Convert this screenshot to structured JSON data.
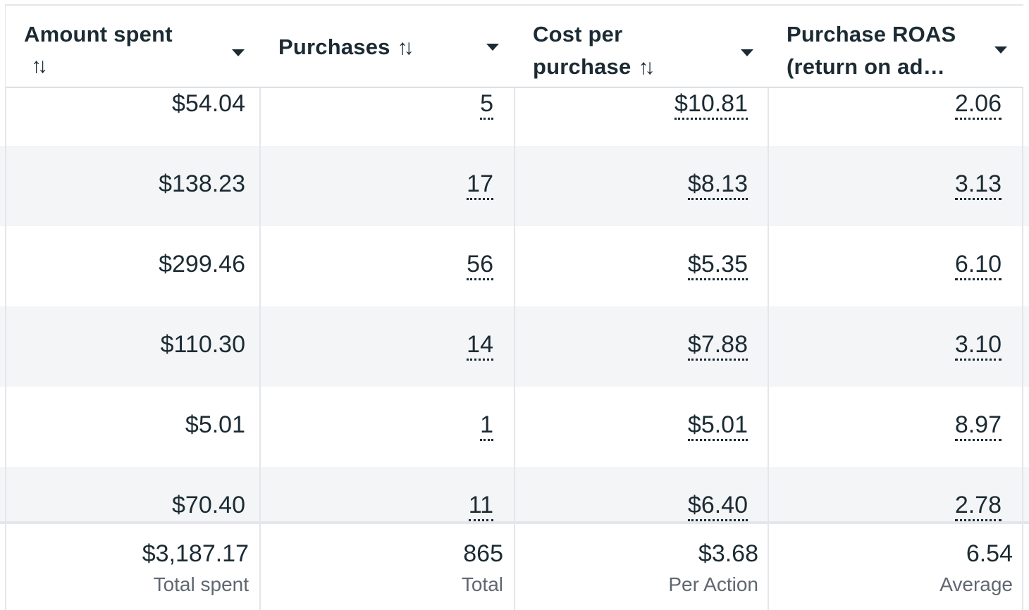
{
  "columns": [
    {
      "label": "Amount spent",
      "sort_icon": "sort-arrows-icon"
    },
    {
      "label": "Purchases",
      "sort_icon": "sort-arrows-icon"
    },
    {
      "label": "Cost per purchase",
      "sort_icon": "sort-arrows-icon"
    },
    {
      "label": "Purchase ROAS (return on ad…"
    }
  ],
  "rows": [
    {
      "amount_spent": "$54.04",
      "purchases": "5",
      "cost_per_purchase": "$10.81",
      "roas": "2.06"
    },
    {
      "amount_spent": "$138.23",
      "purchases": "17",
      "cost_per_purchase": "$8.13",
      "roas": "3.13"
    },
    {
      "amount_spent": "$299.46",
      "purchases": "56",
      "cost_per_purchase": "$5.35",
      "roas": "6.10"
    },
    {
      "amount_spent": "$110.30",
      "purchases": "14",
      "cost_per_purchase": "$7.88",
      "roas": "3.10"
    },
    {
      "amount_spent": "$5.01",
      "purchases": "1",
      "cost_per_purchase": "$5.01",
      "roas": "8.97"
    },
    {
      "amount_spent": "$70.40",
      "purchases": "11",
      "cost_per_purchase": "$6.40",
      "roas": "2.78"
    }
  ],
  "totals": {
    "amount_spent": {
      "value": "$3,187.17",
      "label": "Total spent"
    },
    "purchases": {
      "value": "865",
      "label": "Total"
    },
    "cost_per_purchase": {
      "value": "$3.68",
      "label": "Per Action"
    },
    "roas": {
      "value": "6.54",
      "label": "Average"
    }
  },
  "colors": {
    "text": "#1c2b33",
    "muted": "#606770",
    "row_shade": "#f4f5f7",
    "grid": "#e3e6ea"
  }
}
